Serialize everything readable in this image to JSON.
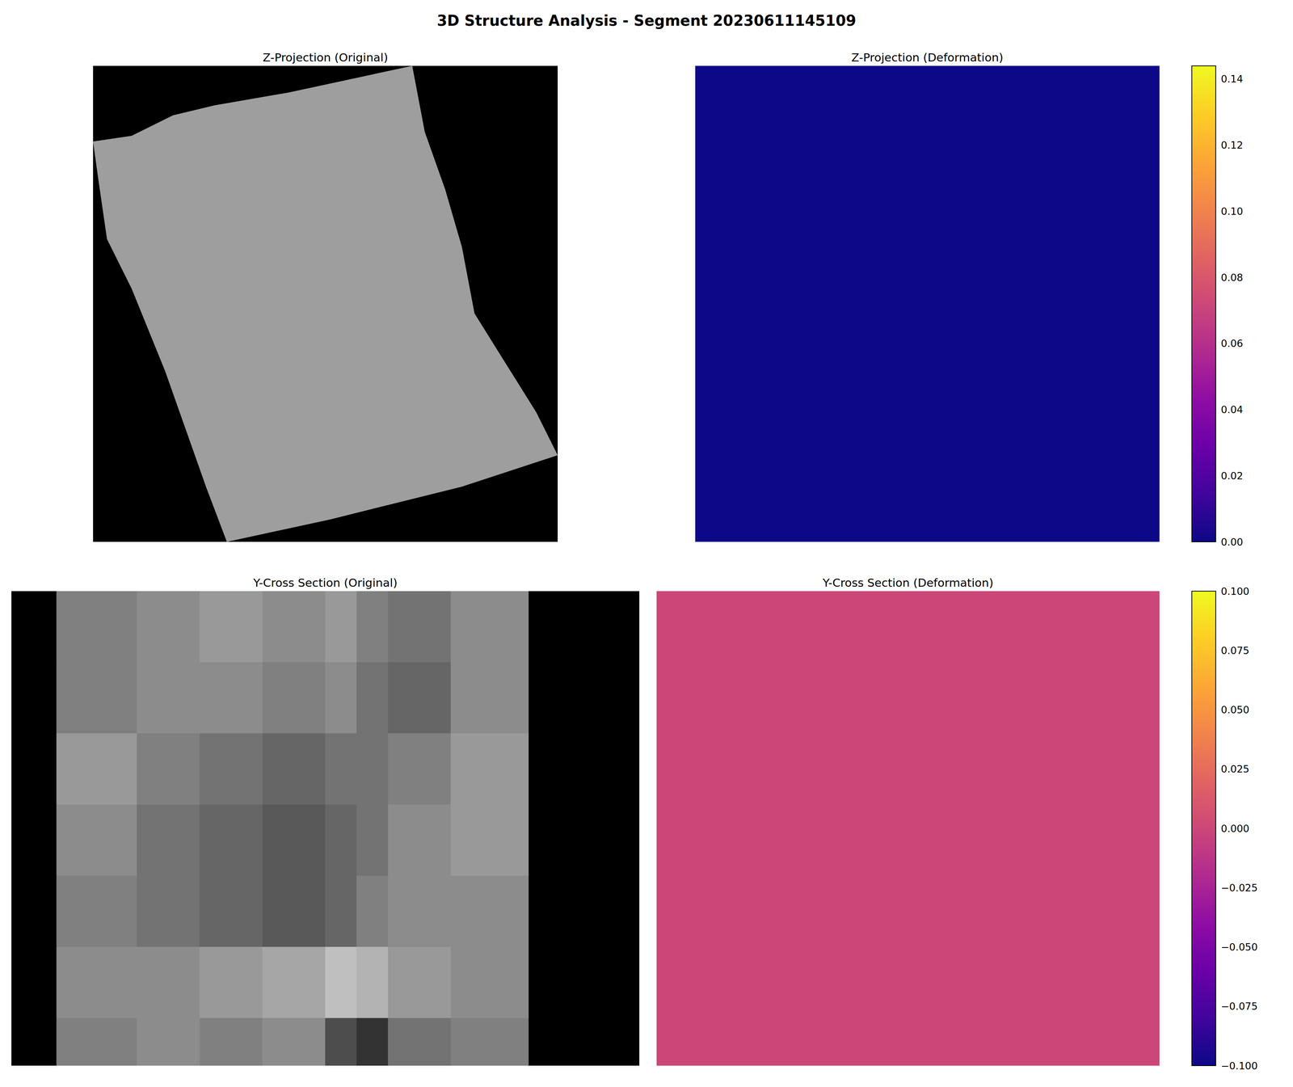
{
  "title": "3D Structure Analysis - Segment 20230611145109",
  "chart_data": [
    {
      "type": "image",
      "title": "Z-Projection (Original)",
      "tick_labels": false,
      "xlim": [
        0,
        1
      ],
      "ylim": [
        0,
        1
      ],
      "color_range": [
        0,
        1
      ],
      "fill_value": 0.62,
      "outline": [
        [
          0,
          0.159
        ],
        [
          0.083,
          0.147
        ],
        [
          0.172,
          0.104
        ],
        [
          0.261,
          0.083
        ],
        [
          0.421,
          0.056
        ],
        [
          0.687,
          0
        ],
        [
          0.714,
          0.139
        ],
        [
          0.758,
          0.26
        ],
        [
          0.794,
          0.381
        ],
        [
          0.821,
          0.52
        ],
        [
          0.865,
          0.589
        ],
        [
          0.954,
          0.728
        ],
        [
          1,
          0.818
        ],
        [
          0.794,
          0.884
        ],
        [
          0.51,
          0.953
        ],
        [
          0.288,
          1
        ],
        [
          0.243,
          0.884
        ],
        [
          0.155,
          0.641
        ],
        [
          0.083,
          0.468
        ],
        [
          0.03,
          0.364
        ],
        [
          0.012,
          0.243
        ]
      ]
    },
    {
      "type": "heatmap",
      "title": "Z-Projection (Deformation)",
      "tick_labels": false,
      "xlim": [
        0,
        1
      ],
      "ylim": [
        0,
        1
      ],
      "x_edges": [
        0,
        1
      ],
      "y_edges": [
        0,
        1
      ],
      "cells": [
        [
          0
        ]
      ],
      "colorbar": {
        "range": [
          0,
          0.144
        ],
        "ticks": [
          {
            "value": 0,
            "label": "0.00"
          },
          {
            "value": 0.02,
            "label": "0.02"
          },
          {
            "value": 0.04,
            "label": "0.04"
          },
          {
            "value": 0.06,
            "label": "0.06"
          },
          {
            "value": 0.08,
            "label": "0.08"
          },
          {
            "value": 0.1,
            "label": "0.10"
          },
          {
            "value": 0.12,
            "label": "0.12"
          },
          {
            "value": 0.14,
            "label": "0.14"
          }
        ]
      }
    },
    {
      "type": "image",
      "title": "Y-Cross Section (Original)",
      "tick_labels": false,
      "xlim": [
        0,
        1
      ],
      "ylim": [
        0,
        1
      ],
      "color_range": [
        0,
        1
      ],
      "x_edges": [
        0,
        0.072,
        0.2,
        0.3,
        0.4,
        0.5,
        0.55,
        0.6,
        0.7,
        0.824,
        1
      ],
      "y_edges": [
        0,
        0.15,
        0.3,
        0.45,
        0.6,
        0.75,
        0.9,
        1
      ],
      "cells": [
        [
          0,
          0.5,
          0.55,
          0.6,
          0.55,
          0.6,
          0.5,
          0.45,
          0.55,
          0
        ],
        [
          0,
          0.5,
          0.55,
          0.55,
          0.5,
          0.55,
          0.45,
          0.4,
          0.55,
          0
        ],
        [
          0,
          0.6,
          0.5,
          0.45,
          0.4,
          0.45,
          0.45,
          0.5,
          0.6,
          0
        ],
        [
          0,
          0.55,
          0.45,
          0.4,
          0.35,
          0.4,
          0.45,
          0.55,
          0.6,
          0
        ],
        [
          0,
          0.5,
          0.45,
          0.4,
          0.35,
          0.4,
          0.5,
          0.55,
          0.55,
          0
        ],
        [
          0,
          0.55,
          0.55,
          0.6,
          0.65,
          0.75,
          0.7,
          0.6,
          0.55,
          0
        ],
        [
          0,
          0.5,
          0.55,
          0.5,
          0.55,
          0.3,
          0.2,
          0.45,
          0.5,
          0
        ]
      ]
    },
    {
      "type": "heatmap",
      "title": "Y-Cross Section (Deformation)",
      "tick_labels": false,
      "xlim": [
        0,
        1
      ],
      "ylim": [
        0,
        1
      ],
      "x_edges": [
        0,
        1
      ],
      "y_edges": [
        0,
        1
      ],
      "cells": [
        [
          0
        ]
      ],
      "colorbar": {
        "range": [
          -0.1,
          0.1
        ],
        "ticks": [
          {
            "value": -0.1,
            "label": "−0.100"
          },
          {
            "value": -0.075,
            "label": "−0.075"
          },
          {
            "value": -0.05,
            "label": "−0.050"
          },
          {
            "value": -0.025,
            "label": "−0.025"
          },
          {
            "value": 0,
            "label": "0.000"
          },
          {
            "value": 0.025,
            "label": "0.025"
          },
          {
            "value": 0.05,
            "label": "0.050"
          },
          {
            "value": 0.075,
            "label": "0.075"
          },
          {
            "value": 0.1,
            "label": "0.100"
          }
        ]
      }
    }
  ]
}
